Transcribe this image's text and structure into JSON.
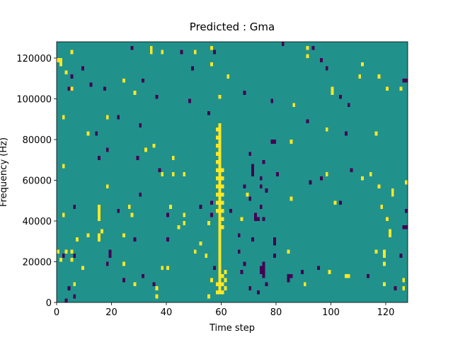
{
  "chart_data": {
    "type": "heatmap",
    "title": "Predicted : Gma",
    "x_label": "Time step",
    "y_label": "Frequency (Hz)",
    "xlim": [
      0,
      128
    ],
    "ylim": [
      0,
      128000
    ],
    "xticks": [
      0,
      20,
      40,
      60,
      80,
      100,
      120
    ],
    "yticks": [
      0,
      20000,
      40000,
      60000,
      80000,
      100000,
      120000
    ],
    "x_step": 1,
    "y_step": 2000,
    "fill_value": 0,
    "color_levels": [
      -1,
      0,
      1
    ],
    "colors": [
      "#440154",
      "#21918c",
      "#fde725"
    ],
    "cells": [
      [
        27,
        124000,
        -1
      ],
      [
        34,
        122000,
        1
      ],
      [
        34,
        124000,
        1
      ],
      [
        38,
        122000,
        1
      ],
      [
        45,
        122000,
        -1
      ],
      [
        50,
        122000,
        1
      ],
      [
        56,
        124000,
        1
      ],
      [
        56,
        116000,
        1
      ],
      [
        57,
        122000,
        -1
      ],
      [
        82,
        126000,
        -1
      ],
      [
        91,
        124000,
        1
      ],
      [
        91,
        120000,
        1
      ],
      [
        93,
        124000,
        -1
      ],
      [
        0,
        118000,
        1
      ],
      [
        1,
        118000,
        1
      ],
      [
        1,
        116000,
        1
      ],
      [
        3,
        112000,
        1
      ],
      [
        5,
        122000,
        1
      ],
      [
        5,
        110000,
        -1
      ],
      [
        4,
        104000,
        -1
      ],
      [
        5,
        104000,
        1
      ],
      [
        9,
        114000,
        -1
      ],
      [
        12,
        106000,
        -1
      ],
      [
        17,
        104000,
        -1
      ],
      [
        24,
        108000,
        1
      ],
      [
        31,
        108000,
        -1
      ],
      [
        49,
        114000,
        -1
      ],
      [
        62,
        110000,
        1
      ],
      [
        98,
        114000,
        -1
      ],
      [
        96,
        118000,
        -1
      ],
      [
        111,
        116000,
        1
      ],
      [
        110,
        110000,
        1
      ],
      [
        117,
        110000,
        1
      ],
      [
        120,
        104000,
        1
      ],
      [
        126,
        108000,
        -1
      ],
      [
        127,
        108000,
        -1
      ],
      [
        125,
        104000,
        1
      ],
      [
        100,
        102000,
        1
      ],
      [
        100,
        104000,
        1
      ],
      [
        103,
        100000,
        -1
      ],
      [
        106,
        96000,
        -1
      ],
      [
        86,
        96000,
        1
      ],
      [
        78,
        98000,
        -1
      ],
      [
        68,
        102000,
        -1
      ],
      [
        59,
        100000,
        1
      ],
      [
        55,
        92000,
        -1
      ],
      [
        48,
        98000,
        -1
      ],
      [
        36,
        100000,
        -1
      ],
      [
        28,
        102000,
        1
      ],
      [
        2,
        90000,
        1
      ],
      [
        18,
        90000,
        1
      ],
      [
        22,
        90000,
        -1
      ],
      [
        30,
        86000,
        -1
      ],
      [
        11,
        82000,
        1
      ],
      [
        14,
        82000,
        -1
      ],
      [
        91,
        88000,
        -1
      ],
      [
        98,
        84000,
        1
      ],
      [
        105,
        82000,
        -1
      ],
      [
        116,
        82000,
        1
      ],
      [
        78,
        78000,
        -1
      ],
      [
        79,
        78000,
        -1
      ],
      [
        85,
        78000,
        1
      ],
      [
        32,
        74000,
        1
      ],
      [
        35,
        76000,
        1
      ],
      [
        29,
        70000,
        -1
      ],
      [
        42,
        70000,
        1
      ],
      [
        18,
        74000,
        -1
      ],
      [
        15,
        70000,
        -1
      ],
      [
        2,
        66000,
        1
      ],
      [
        37,
        64000,
        -1
      ],
      [
        38,
        62000,
        1
      ],
      [
        42,
        62000,
        1
      ],
      [
        46,
        62000,
        1
      ],
      [
        71,
        66000,
        -1
      ],
      [
        71,
        64000,
        -1
      ],
      [
        71,
        62000,
        -1
      ],
      [
        70,
        72000,
        -1
      ],
      [
        68,
        56000,
        -1
      ],
      [
        70,
        50000,
        -1
      ],
      [
        69,
        52000,
        1
      ],
      [
        75,
        68000,
        -1
      ],
      [
        74,
        60000,
        -1
      ],
      [
        74,
        56000,
        -1
      ],
      [
        80,
        62000,
        -1
      ],
      [
        85,
        50000,
        1
      ],
      [
        92,
        58000,
        -1
      ],
      [
        96,
        60000,
        -1
      ],
      [
        98,
        62000,
        1
      ],
      [
        107,
        64000,
        -1
      ],
      [
        114,
        62000,
        1
      ],
      [
        111,
        60000,
        1
      ],
      [
        117,
        56000,
        1
      ],
      [
        122,
        52000,
        1
      ],
      [
        122,
        54000,
        1
      ],
      [
        127,
        58000,
        1
      ],
      [
        101,
        48000,
        1
      ],
      [
        103,
        48000,
        -1
      ],
      [
        118,
        46000,
        1
      ],
      [
        127,
        44000,
        -1
      ],
      [
        120,
        40000,
        1
      ],
      [
        126,
        36000,
        -1
      ],
      [
        127,
        36000,
        -1
      ],
      [
        121,
        32000,
        1
      ],
      [
        121,
        34000,
        1
      ],
      [
        116,
        24000,
        1
      ],
      [
        119,
        22000,
        1
      ],
      [
        119,
        24000,
        1
      ],
      [
        119,
        18000,
        1
      ],
      [
        125,
        22000,
        -1
      ],
      [
        119,
        8000,
        1
      ],
      [
        123,
        6000,
        -1
      ],
      [
        126,
        6000,
        1
      ],
      [
        126,
        10000,
        1
      ],
      [
        113,
        12000,
        -1
      ],
      [
        105,
        12000,
        1
      ],
      [
        106,
        12000,
        1
      ],
      [
        99,
        14000,
        1
      ],
      [
        95,
        16000,
        -1
      ],
      [
        89,
        14000,
        -1
      ],
      [
        90,
        8000,
        1
      ],
      [
        84,
        10000,
        -1
      ],
      [
        84,
        12000,
        -1
      ],
      [
        85,
        12000,
        -1
      ],
      [
        79,
        22000,
        -1
      ],
      [
        84,
        24000,
        1
      ],
      [
        79,
        28000,
        -1
      ],
      [
        79,
        30000,
        -1
      ],
      [
        75,
        12000,
        -1
      ],
      [
        75,
        14000,
        -1
      ],
      [
        75,
        16000,
        -1
      ],
      [
        75,
        18000,
        -1
      ],
      [
        74,
        14000,
        -1
      ],
      [
        74,
        16000,
        -1
      ],
      [
        73,
        4000,
        -1
      ],
      [
        76,
        8000,
        -1
      ],
      [
        67,
        14000,
        -1
      ],
      [
        68,
        18000,
        -1
      ],
      [
        70,
        6000,
        -1
      ],
      [
        66,
        24000,
        -1
      ],
      [
        71,
        30000,
        -1
      ],
      [
        66,
        32000,
        -1
      ],
      [
        67,
        40000,
        1
      ],
      [
        72,
        40000,
        -1
      ],
      [
        72,
        42000,
        -1
      ],
      [
        73,
        40000,
        -1
      ],
      [
        74,
        46000,
        -1
      ],
      [
        75,
        40000,
        -1
      ],
      [
        76,
        54000,
        -1
      ],
      [
        63,
        44000,
        -1
      ],
      [
        55,
        38000,
        1
      ],
      [
        52,
        28000,
        1
      ],
      [
        54,
        22000,
        1
      ],
      [
        56,
        10000,
        1
      ],
      [
        57,
        16000,
        -1
      ],
      [
        55,
        2000,
        1
      ],
      [
        59,
        4000,
        1
      ],
      [
        59,
        6000,
        1
      ],
      [
        59,
        8000,
        1
      ],
      [
        59,
        10000,
        1
      ],
      [
        59,
        12000,
        1
      ],
      [
        59,
        14000,
        1
      ],
      [
        59,
        16000,
        1
      ],
      [
        59,
        18000,
        1
      ],
      [
        59,
        20000,
        1
      ],
      [
        59,
        22000,
        1
      ],
      [
        59,
        24000,
        1
      ],
      [
        59,
        26000,
        1
      ],
      [
        59,
        28000,
        1
      ],
      [
        59,
        30000,
        1
      ],
      [
        59,
        32000,
        1
      ],
      [
        59,
        34000,
        1
      ],
      [
        59,
        36000,
        1
      ],
      [
        59,
        38000,
        1
      ],
      [
        59,
        40000,
        1
      ],
      [
        59,
        42000,
        1
      ],
      [
        59,
        44000,
        1
      ],
      [
        59,
        46000,
        1
      ],
      [
        59,
        48000,
        1
      ],
      [
        59,
        50000,
        1
      ],
      [
        59,
        52000,
        1
      ],
      [
        59,
        54000,
        1
      ],
      [
        59,
        56000,
        1
      ],
      [
        59,
        58000,
        1
      ],
      [
        59,
        60000,
        1
      ],
      [
        59,
        62000,
        1
      ],
      [
        59,
        64000,
        1
      ],
      [
        59,
        66000,
        1
      ],
      [
        59,
        68000,
        1
      ],
      [
        59,
        70000,
        1
      ],
      [
        59,
        72000,
        1
      ],
      [
        59,
        74000,
        1
      ],
      [
        59,
        76000,
        1
      ],
      [
        59,
        78000,
        1
      ],
      [
        59,
        80000,
        1
      ],
      [
        59,
        82000,
        1
      ],
      [
        59,
        84000,
        1
      ],
      [
        59,
        86000,
        1
      ],
      [
        58,
        44000,
        1
      ],
      [
        58,
        48000,
        1
      ],
      [
        58,
        52000,
        1
      ],
      [
        58,
        56000,
        1
      ],
      [
        58,
        60000,
        1
      ],
      [
        58,
        64000,
        1
      ],
      [
        58,
        68000,
        1
      ],
      [
        58,
        72000,
        1
      ],
      [
        58,
        76000,
        1
      ],
      [
        58,
        80000,
        1
      ],
      [
        58,
        84000,
        1
      ],
      [
        58,
        4000,
        1
      ],
      [
        58,
        8000,
        1
      ],
      [
        60,
        36000,
        1
      ],
      [
        60,
        40000,
        1
      ],
      [
        60,
        44000,
        1
      ],
      [
        60,
        48000,
        1
      ],
      [
        60,
        52000,
        1
      ],
      [
        60,
        56000,
        1
      ],
      [
        60,
        60000,
        1
      ],
      [
        60,
        64000,
        1
      ],
      [
        60,
        4000,
        1
      ],
      [
        60,
        8000,
        1
      ],
      [
        60,
        12000,
        1
      ],
      [
        61,
        6000,
        1
      ],
      [
        61,
        10000,
        1
      ],
      [
        61,
        14000,
        1
      ],
      [
        0,
        24000,
        1
      ],
      [
        1,
        20000,
        1
      ],
      [
        2,
        22000,
        -1
      ],
      [
        3,
        24000,
        1
      ],
      [
        5,
        20000,
        1
      ],
      [
        5,
        24000,
        1
      ],
      [
        6,
        22000,
        -1
      ],
      [
        7,
        30000,
        1
      ],
      [
        9,
        16000,
        1
      ],
      [
        11,
        32000,
        1
      ],
      [
        6,
        2000,
        -1
      ],
      [
        6,
        8000,
        1
      ],
      [
        4,
        6000,
        -1
      ],
      [
        3,
        0,
        -1
      ],
      [
        2,
        42000,
        1
      ],
      [
        6,
        46000,
        -1
      ],
      [
        15,
        30000,
        1
      ],
      [
        15,
        32000,
        1
      ],
      [
        16,
        34000,
        1
      ],
      [
        15,
        40000,
        1
      ],
      [
        15,
        42000,
        1
      ],
      [
        15,
        44000,
        1
      ],
      [
        15,
        46000,
        1
      ],
      [
        19,
        22000,
        -1
      ],
      [
        19,
        24000,
        -1
      ],
      [
        24,
        32000,
        1
      ],
      [
        26,
        46000,
        1
      ],
      [
        22,
        44000,
        -1
      ],
      [
        28,
        30000,
        -1
      ],
      [
        24,
        18000,
        1
      ],
      [
        31,
        12000,
        -1
      ],
      [
        36,
        2000,
        1
      ],
      [
        36,
        6000,
        1
      ],
      [
        38,
        16000,
        1
      ],
      [
        44,
        36000,
        1
      ],
      [
        46,
        38000,
        1
      ],
      [
        46,
        42000,
        1
      ],
      [
        50,
        24000,
        1
      ],
      [
        52,
        46000,
        -1
      ],
      [
        56,
        42000,
        -1
      ],
      [
        56,
        48000,
        -1
      ],
      [
        40,
        16000,
        1
      ],
      [
        40,
        30000,
        -1
      ],
      [
        18,
        18000,
        -1
      ],
      [
        27,
        42000,
        1
      ],
      [
        30,
        52000,
        -1
      ],
      [
        40,
        42000,
        -1
      ],
      [
        41,
        46000,
        1
      ],
      [
        24,
        10000,
        -1
      ],
      [
        28,
        8000,
        1
      ],
      [
        35,
        8000,
        -1
      ],
      [
        18,
        56000,
        1
      ]
    ]
  }
}
